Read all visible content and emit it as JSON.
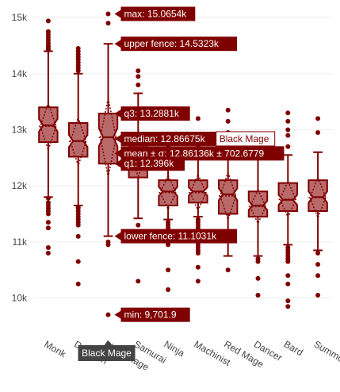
{
  "chart_data": {
    "type": "box",
    "colors": {
      "box_line": "#7f0000",
      "box_fill": "#b86a6a",
      "grid": "#eeeeee",
      "tooltip_bg": "#7f0000",
      "tooltip_text": "#ffffff",
      "name_tag_bg": "#444444",
      "name_tag_text": "#ffffff"
    },
    "y_range": [
      9400,
      15200
    ],
    "y_ticks": [
      {
        "value": 10000,
        "label": "10k"
      },
      {
        "value": 11000,
        "label": "11k"
      },
      {
        "value": 12000,
        "label": "12k"
      },
      {
        "value": 13000,
        "label": "13k"
      },
      {
        "value": 14000,
        "label": "14k"
      },
      {
        "value": 15000,
        "label": "15k"
      }
    ],
    "categories": [
      "Monk",
      "Dragoon",
      "Black Mage",
      "Samurai",
      "Ninja",
      "Machinist",
      "Red Mage",
      "Dancer",
      "Bard",
      "Summoner"
    ],
    "category_labels": [
      "Monk",
      "Dragoon",
      "Black Mage",
      "Samurai",
      "Ninja",
      "Machinist",
      "Red Mage",
      "Dancer",
      "Bard",
      "Summoner"
    ],
    "boxes": [
      {
        "name": "Monk",
        "lf": 11800,
        "q1": 12780,
        "median": 13080,
        "mean": 13060,
        "sd": 420,
        "q3": 13400,
        "uf": 14400,
        "outliers": [
          14940,
          14750,
          14700,
          14650,
          14600,
          14550,
          14500,
          14480,
          14450,
          14420,
          11780,
          11700,
          11650,
          11600,
          11550,
          11500,
          11350,
          11250,
          10900,
          10800
        ]
      },
      {
        "name": "Dragoon",
        "lf": 11650,
        "q1": 12520,
        "median": 12800,
        "mean": 12790,
        "sd": 430,
        "q3": 13120,
        "uf": 14000,
        "outliers": [
          14450,
          14400,
          14350,
          14300,
          14250,
          14200,
          14150,
          14100,
          14050,
          11620,
          11600,
          11550,
          11500,
          11450,
          11400,
          11350,
          11300,
          11100,
          10650,
          10250
        ]
      },
      {
        "name": "Black Mage",
        "lf": 11103.1,
        "q1": 12396,
        "median": 12866.75,
        "mean": 12861.36,
        "sd": 702.6779,
        "q3": 13288.1,
        "uf": 14532.3,
        "max": 15065.4,
        "min": 9701.9,
        "outliers": [
          15065.4,
          14900,
          11000,
          10950,
          9701.9
        ]
      },
      {
        "name": "Samurai",
        "lf": 11420,
        "q1": 12150,
        "median": 12600,
        "mean": 12550,
        "sd": 380,
        "q3": 12850,
        "uf": 13650,
        "outliers": [
          14050,
          13950,
          13800,
          11300,
          10300
        ]
      },
      {
        "name": "Ninja",
        "lf": 11400,
        "q1": 11650,
        "median": 11900,
        "mean": 11880,
        "sd": 300,
        "q3": 12100,
        "uf": 12450,
        "outliers": [
          12800,
          12700,
          11350,
          11300,
          11250,
          11200,
          11150,
          11100,
          11050,
          11000,
          10950,
          10500,
          10150
        ]
      },
      {
        "name": "Machinist",
        "lf": 11450,
        "q1": 11700,
        "median": 11900,
        "mean": 11880,
        "sd": 320,
        "q3": 12100,
        "uf": 12550,
        "outliers": [
          13200,
          12900,
          12700,
          11400,
          11350,
          11300,
          11250,
          11200,
          11150,
          11100,
          11050,
          11000,
          10950,
          10900,
          10850,
          10800,
          10550,
          10300
        ]
      },
      {
        "name": "Red Mage",
        "lf": 10750,
        "q1": 11500,
        "median": 11850,
        "mean": 11820,
        "sd": 420,
        "q3": 12100,
        "uf": 12850,
        "outliers": [
          13350,
          13150,
          12950,
          10500
        ]
      },
      {
        "name": "Dancer",
        "lf": 10750,
        "q1": 11450,
        "median": 11650,
        "mean": 11630,
        "sd": 300,
        "q3": 11900,
        "uf": 12650,
        "outliers": [
          12900,
          12700,
          10700,
          10650,
          10350,
          10050
        ]
      },
      {
        "name": "Bard",
        "lf": 10950,
        "q1": 11550,
        "median": 11750,
        "mean": 11760,
        "sd": 320,
        "q3": 12050,
        "uf": 12550,
        "outliers": [
          13300,
          13150,
          13000,
          12900,
          12700,
          10900,
          10850,
          10800,
          10750,
          10700,
          10650,
          10400,
          10250,
          9950,
          9850
        ]
      },
      {
        "name": "Summoner",
        "lf": 10850,
        "q1": 11550,
        "median": 11800,
        "mean": 11790,
        "sd": 360,
        "q3": 12100,
        "uf": 12600,
        "outliers": [
          13200,
          12950,
          10800,
          10600,
          10400,
          10050
        ]
      }
    ],
    "hover": {
      "category": "Black Mage",
      "labels": {
        "max": "max: 15.0654k",
        "upper_fence": "upper fence: 14.5323k",
        "q3": "q3: 13.2881k",
        "median": "median: 12.86675k",
        "mean": "mean ± σ: 12.86136k ± 702.6779",
        "q1": "q1: 12.396k",
        "lower_fence": "lower fence: 11.1031k",
        "min": "min: 9,701.9"
      },
      "trace_name": "Black Mage",
      "axis_tag": "Black Mage"
    }
  }
}
